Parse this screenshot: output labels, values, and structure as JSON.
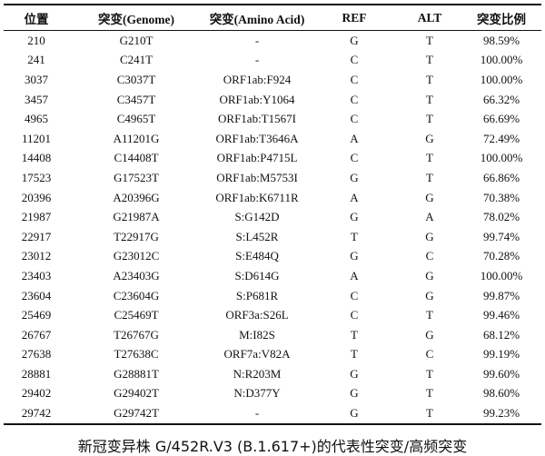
{
  "table": {
    "headers": [
      "位置",
      "突变(Genome)",
      "突变(Amino Acid)",
      "REF",
      "ALT",
      "突变比例"
    ],
    "rows": [
      [
        "210",
        "G210T",
        "-",
        "G",
        "T",
        "98.59%"
      ],
      [
        "241",
        "C241T",
        "-",
        "C",
        "T",
        "100.00%"
      ],
      [
        "3037",
        "C3037T",
        "ORF1ab:F924",
        "C",
        "T",
        "100.00%"
      ],
      [
        "3457",
        "C3457T",
        "ORF1ab:Y1064",
        "C",
        "T",
        "66.32%"
      ],
      [
        "4965",
        "C4965T",
        "ORF1ab:T1567I",
        "C",
        "T",
        "66.69%"
      ],
      [
        "11201",
        "A11201G",
        "ORF1ab:T3646A",
        "A",
        "G",
        "72.49%"
      ],
      [
        "14408",
        "C14408T",
        "ORF1ab:P4715L",
        "C",
        "T",
        "100.00%"
      ],
      [
        "17523",
        "G17523T",
        "ORF1ab:M5753I",
        "G",
        "T",
        "66.86%"
      ],
      [
        "20396",
        "A20396G",
        "ORF1ab:K6711R",
        "A",
        "G",
        "70.38%"
      ],
      [
        "21987",
        "G21987A",
        "S:G142D",
        "G",
        "A",
        "78.02%"
      ],
      [
        "22917",
        "T22917G",
        "S:L452R",
        "T",
        "G",
        "99.74%"
      ],
      [
        "23012",
        "G23012C",
        "S:E484Q",
        "G",
        "C",
        "70.28%"
      ],
      [
        "23403",
        "A23403G",
        "S:D614G",
        "A",
        "G",
        "100.00%"
      ],
      [
        "23604",
        "C23604G",
        "S:P681R",
        "C",
        "G",
        "99.87%"
      ],
      [
        "25469",
        "C25469T",
        "ORF3a:S26L",
        "C",
        "T",
        "99.46%"
      ],
      [
        "26767",
        "T26767G",
        "M:I82S",
        "T",
        "G",
        "68.12%"
      ],
      [
        "27638",
        "T27638C",
        "ORF7a:V82A",
        "T",
        "C",
        "99.19%"
      ],
      [
        "28881",
        "G28881T",
        "N:R203M",
        "G",
        "T",
        "99.60%"
      ],
      [
        "29402",
        "G29402T",
        "N:D377Y",
        "G",
        "T",
        "98.60%"
      ],
      [
        "29742",
        "G29742T",
        "-",
        "G",
        "T",
        "99.23%"
      ]
    ]
  },
  "caption": "新冠变异株 G/452R.V3 (B.1.617+)的代表性突变/高频突变"
}
